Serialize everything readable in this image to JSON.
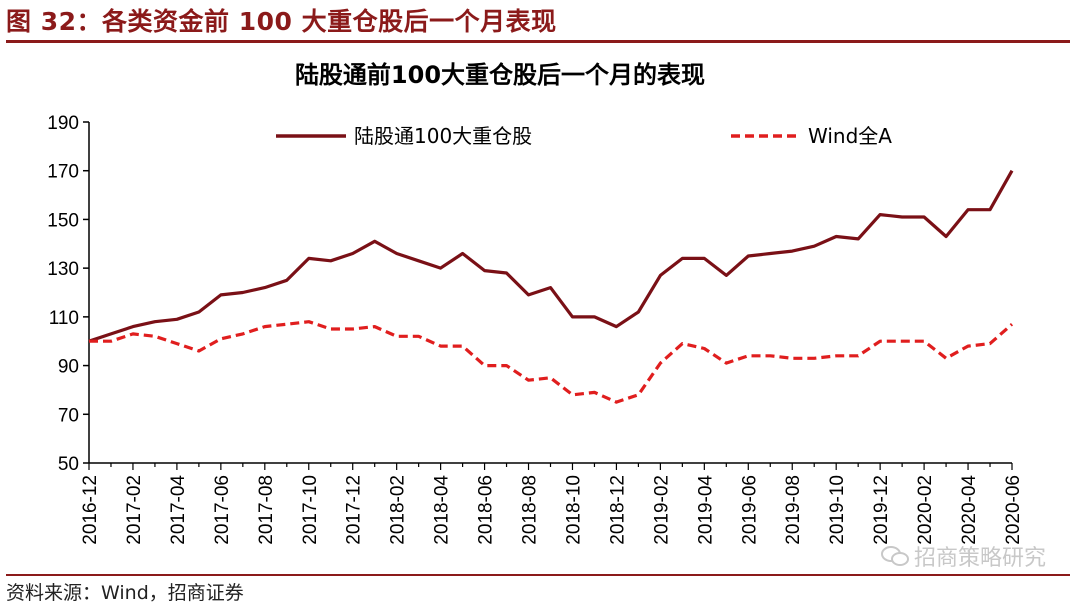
{
  "header": {
    "figure_title": "图 32：各类资金前 100 大重仓股后一个月表现"
  },
  "footer": {
    "source": "资料来源：Wind，招商证券",
    "watermark": "招商策略研究",
    "watermark_icon": "wechat-icon"
  },
  "colors": {
    "accent": "#8b1a1a",
    "series_solid": "#7a1016",
    "series_dashed": "#e01e1e"
  },
  "chart_data": {
    "type": "line",
    "title": "陆股通前100大重仓股后一个月的表现",
    "xlabel": "",
    "ylabel": "",
    "ylim": [
      50,
      190
    ],
    "yticks": [
      50,
      70,
      90,
      110,
      130,
      150,
      170,
      190
    ],
    "grid": false,
    "legend_position": "top",
    "x": [
      "2016-12",
      "2017-01",
      "2017-02",
      "2017-03",
      "2017-04",
      "2017-05",
      "2017-06",
      "2017-07",
      "2017-08",
      "2017-09",
      "2017-10",
      "2017-11",
      "2017-12",
      "2018-01",
      "2018-02",
      "2018-03",
      "2018-04",
      "2018-05",
      "2018-06",
      "2018-07",
      "2018-08",
      "2018-09",
      "2018-10",
      "2018-11",
      "2018-12",
      "2019-01",
      "2019-02",
      "2019-03",
      "2019-04",
      "2019-05",
      "2019-06",
      "2019-07",
      "2019-08",
      "2019-09",
      "2019-10",
      "2019-11",
      "2019-12",
      "2020-01",
      "2020-02",
      "2020-03",
      "2020-04",
      "2020-05",
      "2020-06"
    ],
    "xtick_labels": [
      "2016-12",
      "2017-02",
      "2017-04",
      "2017-06",
      "2017-08",
      "2017-10",
      "2017-12",
      "2018-02",
      "2018-04",
      "2018-06",
      "2018-08",
      "2018-10",
      "2018-12",
      "2019-02",
      "2019-04",
      "2019-06",
      "2019-08",
      "2019-10",
      "2019-12",
      "2020-02",
      "2020-04",
      "2020-06"
    ],
    "series": [
      {
        "name": "陆股通100大重仓股",
        "style": "solid",
        "values": [
          100,
          103,
          106,
          108,
          109,
          112,
          119,
          120,
          122,
          125,
          134,
          133,
          136,
          141,
          136,
          133,
          130,
          136,
          129,
          128,
          119,
          122,
          110,
          110,
          106,
          112,
          127,
          134,
          134,
          127,
          135,
          136,
          137,
          139,
          143,
          142,
          152,
          151,
          151,
          143,
          154,
          154,
          170
        ]
      },
      {
        "name": "Wind全A",
        "style": "dashed",
        "values": [
          100,
          100,
          103,
          102,
          99,
          96,
          101,
          103,
          106,
          107,
          108,
          105,
          105,
          106,
          102,
          102,
          98,
          98,
          90,
          90,
          84,
          85,
          78,
          79,
          75,
          78,
          91,
          99,
          97,
          91,
          94,
          94,
          93,
          93,
          94,
          94,
          100,
          100,
          100,
          93,
          98,
          99,
          107
        ]
      }
    ]
  }
}
